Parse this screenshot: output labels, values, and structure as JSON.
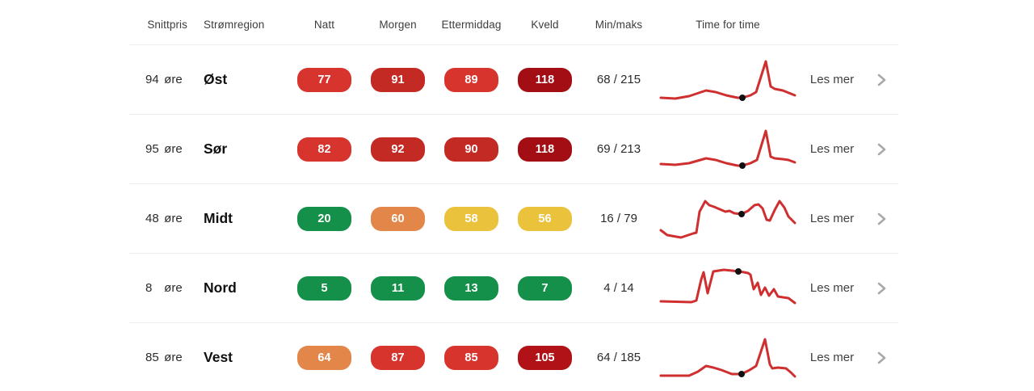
{
  "table": {
    "headers": {
      "snittpris": "Snittpris",
      "stromregion": "Strømregion",
      "natt": "Natt",
      "morgen": "Morgen",
      "ettermiddag": "Ettermiddag",
      "kveld": "Kveld",
      "minmaks": "Min/maks",
      "time_for_time": "Time for time"
    },
    "rows": [
      {
        "avg_value": "94",
        "avg_unit": "øre",
        "region": "Øst",
        "badges": [
          {
            "value": "77",
            "color": "#d7342e"
          },
          {
            "value": "91",
            "color": "#c32a24"
          },
          {
            "value": "89",
            "color": "#d7342e"
          },
          {
            "value": "118",
            "color": "#a30d14"
          }
        ],
        "minmaks": "68 / 215",
        "les_mer": "Les mer",
        "sparkline": {
          "color": "#d02f2f",
          "dot_color": "#111111",
          "points": [
            [
              2,
              52
            ],
            [
              20,
              53
            ],
            [
              37,
              50
            ],
            [
              58,
              43
            ],
            [
              70,
              45
            ],
            [
              83,
              49
            ],
            [
              97,
              52
            ],
            [
              103,
              52
            ],
            [
              113,
              49
            ],
            [
              120,
              45
            ],
            [
              132,
              7
            ],
            [
              138,
              38
            ],
            [
              143,
              41
            ],
            [
              153,
              43
            ],
            [
              168,
              49
            ]
          ],
          "dot": [
            103,
            52
          ]
        }
      },
      {
        "avg_value": "95",
        "avg_unit": "øre",
        "region": "Sør",
        "badges": [
          {
            "value": "82",
            "color": "#d7342e"
          },
          {
            "value": "92",
            "color": "#c32a24"
          },
          {
            "value": "90",
            "color": "#c32a24"
          },
          {
            "value": "118",
            "color": "#a30d14"
          }
        ],
        "minmaks": "69 / 213",
        "les_mer": "Les mer",
        "sparkline": {
          "color": "#d02f2f",
          "dot_color": "#111111",
          "points": [
            [
              2,
              48
            ],
            [
              20,
              49
            ],
            [
              37,
              47
            ],
            [
              58,
              41
            ],
            [
              70,
              43
            ],
            [
              83,
              47
            ],
            [
              97,
              50
            ],
            [
              103,
              50
            ],
            [
              113,
              47
            ],
            [
              121,
              43
            ],
            [
              132,
              7
            ],
            [
              138,
              39
            ],
            [
              143,
              41
            ],
            [
              153,
              42
            ],
            [
              160,
              43
            ],
            [
              168,
              46
            ]
          ],
          "dot": [
            103,
            50
          ]
        }
      },
      {
        "avg_value": "48",
        "avg_unit": "øre",
        "region": "Midt",
        "badges": [
          {
            "value": "20",
            "color": "#14904a"
          },
          {
            "value": "60",
            "color": "#e28749"
          },
          {
            "value": "58",
            "color": "#ebc23c"
          },
          {
            "value": "56",
            "color": "#ebc23c"
          }
        ],
        "minmaks": "16 / 79",
        "les_mer": "Les mer",
        "sparkline": {
          "color": "#d02f2f",
          "dot_color": "#111111",
          "points": [
            [
              2,
              44
            ],
            [
              10,
              50
            ],
            [
              27,
              53
            ],
            [
              42,
              48
            ],
            [
              46,
              47
            ],
            [
              50,
              21
            ],
            [
              57,
              8
            ],
            [
              62,
              13
            ],
            [
              68,
              15
            ],
            [
              75,
              18
            ],
            [
              82,
              21
            ],
            [
              87,
              20
            ],
            [
              93,
              23
            ],
            [
              102,
              24
            ],
            [
              110,
              20
            ],
            [
              118,
              13
            ],
            [
              123,
              12
            ],
            [
              128,
              17
            ],
            [
              133,
              31
            ],
            [
              137,
              32
            ],
            [
              143,
              19
            ],
            [
              149,
              8
            ],
            [
              155,
              16
            ],
            [
              160,
              27
            ],
            [
              168,
              35
            ]
          ],
          "dot": [
            102,
            24
          ]
        }
      },
      {
        "avg_value": "8",
        "avg_unit": "øre",
        "region": "Nord",
        "badges": [
          {
            "value": "5",
            "color": "#14904a"
          },
          {
            "value": "11",
            "color": "#14904a"
          },
          {
            "value": "13",
            "color": "#14904a"
          },
          {
            "value": "7",
            "color": "#14904a"
          }
        ],
        "minmaks": "4 / 14",
        "les_mer": "Les mer",
        "sparkline": {
          "color": "#d02f2f",
          "dot_color": "#111111",
          "points": [
            [
              2,
              46
            ],
            [
              40,
              47
            ],
            [
              46,
              45
            ],
            [
              52,
              19
            ],
            [
              55,
              10
            ],
            [
              60,
              36
            ],
            [
              67,
              9
            ],
            [
              80,
              7
            ],
            [
              90,
              8
            ],
            [
              98,
              9
            ],
            [
              105,
              10
            ],
            [
              110,
              11
            ],
            [
              113,
              13
            ],
            [
              117,
              31
            ],
            [
              122,
              23
            ],
            [
              126,
              38
            ],
            [
              131,
              29
            ],
            [
              136,
              39
            ],
            [
              142,
              31
            ],
            [
              147,
              40
            ],
            [
              153,
              41
            ],
            [
              160,
              42
            ],
            [
              168,
              48
            ]
          ],
          "dot": [
            98,
            9
          ]
        }
      },
      {
        "avg_value": "85",
        "avg_unit": "øre",
        "region": "Vest",
        "badges": [
          {
            "value": "64",
            "color": "#e28749"
          },
          {
            "value": "87",
            "color": "#d7342e"
          },
          {
            "value": "85",
            "color": "#d7342e"
          },
          {
            "value": "105",
            "color": "#b01217"
          }
        ],
        "minmaks": "64 / 185",
        "les_mer": "Les mer",
        "sparkline": {
          "color": "#d02f2f",
          "dot_color": "#111111",
          "points": [
            [
              2,
              52
            ],
            [
              37,
              52
            ],
            [
              48,
              47
            ],
            [
              58,
              40
            ],
            [
              67,
              42
            ],
            [
              77,
              45
            ],
            [
              90,
              50
            ],
            [
              102,
              50
            ],
            [
              112,
              45
            ],
            [
              120,
              40
            ],
            [
              131,
              7
            ],
            [
              137,
              38
            ],
            [
              140,
              43
            ],
            [
              147,
              42
            ],
            [
              157,
              43
            ],
            [
              163,
              48
            ],
            [
              168,
              53
            ]
          ],
          "dot": [
            102,
            50
          ]
        }
      }
    ]
  },
  "icons": {
    "chevron_right": "chevron-right",
    "chevron_color": "#a9a9a9"
  }
}
